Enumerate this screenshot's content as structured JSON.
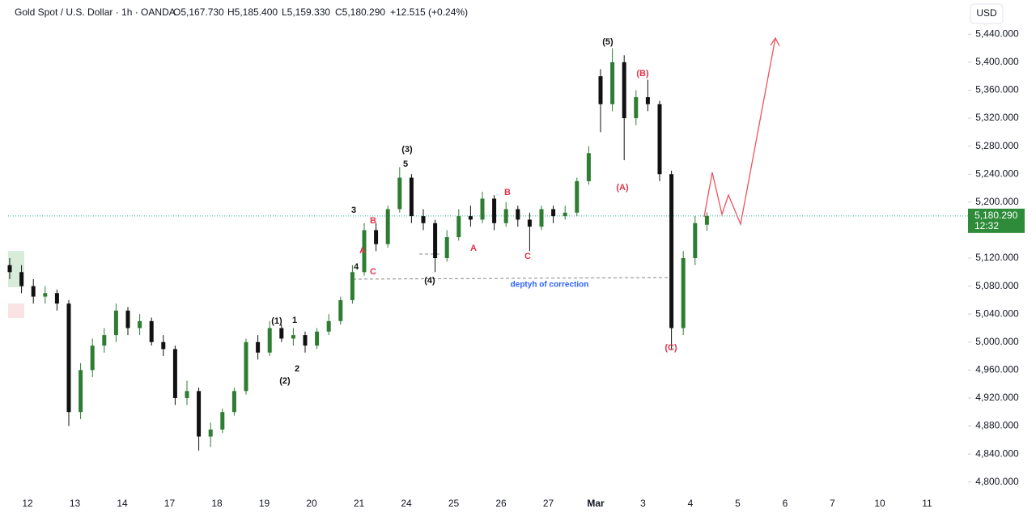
{
  "chart_data": {
    "type": "candlestick",
    "title": "Gold Spot / U.S. Dollar · 1h · OANDA",
    "ohlc_header": {
      "open": "O5,167.730",
      "high": "H5,185.400",
      "low": "L5,159.330",
      "close": "C5,180.290",
      "change": "+12.515 (+0.24%)"
    },
    "currency": "USD",
    "up_color": "#2e7d32",
    "down_color": "#111111",
    "open": [
      5110,
      5100,
      5080,
      5065,
      5070,
      5055,
      4900,
      4960,
      4995,
      5010,
      5045,
      5020,
      5030,
      5000,
      4990,
      4920,
      4930,
      4865,
      4875,
      4900,
      4930,
      5000,
      4985,
      5020,
      5005,
      5010,
      4995,
      5015,
      5030,
      5060,
      5100,
      5160,
      5140,
      5190,
      5235,
      5180,
      5170,
      5120,
      5150,
      5180,
      5175,
      5205,
      5170,
      5190,
      5175,
      5165,
      5190,
      5180,
      5185,
      5230,
      5380,
      5340,
      5400,
      5320,
      5350,
      5340,
      5240,
      5020,
      5120,
      5167.73
    ],
    "high": [
      5120,
      5110,
      5090,
      5080,
      5075,
      5060,
      4970,
      5005,
      5020,
      5055,
      5050,
      5040,
      5035,
      5010,
      4995,
      4945,
      4935,
      4885,
      4905,
      4935,
      5005,
      5010,
      5030,
      5025,
      5020,
      5015,
      5020,
      5040,
      5065,
      5110,
      5170,
      5170,
      5195,
      5250,
      5240,
      5190,
      5175,
      5160,
      5190,
      5195,
      5215,
      5210,
      5200,
      5195,
      5185,
      5195,
      5195,
      5195,
      5235,
      5280,
      5390,
      5420,
      5410,
      5360,
      5375,
      5345,
      5245,
      5130,
      5180,
      5185.4
    ],
    "low": [
      5090,
      5070,
      5055,
      5055,
      5045,
      4880,
      4890,
      4950,
      4985,
      5000,
      5010,
      5010,
      4995,
      4980,
      4910,
      4910,
      4845,
      4850,
      4870,
      4895,
      4925,
      4975,
      4980,
      5000,
      4995,
      4985,
      4990,
      5010,
      5025,
      5055,
      5095,
      5130,
      5135,
      5185,
      5170,
      5160,
      5100,
      5115,
      5145,
      5165,
      5170,
      5160,
      5165,
      5165,
      5130,
      5160,
      5170,
      5175,
      5180,
      5225,
      5300,
      5330,
      5260,
      5310,
      5330,
      5230,
      4990,
      5010,
      5110,
      5159.33
    ],
    "close": [
      5100,
      5080,
      5065,
      5070,
      5055,
      4900,
      4960,
      4995,
      5010,
      5045,
      5020,
      5030,
      5000,
      4990,
      4920,
      4930,
      4865,
      4875,
      4900,
      4930,
      5000,
      4985,
      5020,
      5005,
      5010,
      4995,
      5015,
      5030,
      5060,
      5100,
      5160,
      5140,
      5190,
      5235,
      5180,
      5170,
      5120,
      5150,
      5180,
      5175,
      5205,
      5170,
      5190,
      5175,
      5165,
      5190,
      5180,
      5185,
      5230,
      5270,
      5340,
      5400,
      5320,
      5350,
      5340,
      5240,
      5020,
      5120,
      5170,
      5180.29
    ],
    "categories": [
      "12",
      "13",
      "14",
      "17",
      "18",
      "19",
      "20",
      "21",
      "24",
      "25",
      "26",
      "27",
      "Mar",
      "3",
      "4",
      "5",
      "6",
      "7",
      "10",
      "11"
    ],
    "ylim": [
      4780,
      5460
    ],
    "yticks": [
      {
        "value": 4800,
        "label": "4,800.000"
      },
      {
        "value": 4840,
        "label": "4,840.000"
      },
      {
        "value": 4880,
        "label": "4,880.000"
      },
      {
        "value": 4920,
        "label": "4,920.000"
      },
      {
        "value": 4960,
        "label": "4,960.000"
      },
      {
        "value": 5000,
        "label": "5,000.000"
      },
      {
        "value": 5040,
        "label": "5,040.000"
      },
      {
        "value": 5080,
        "label": "5,080.000"
      },
      {
        "value": 5120,
        "label": "5,120.000"
      },
      {
        "value": 5200,
        "label": "5,200.000"
      },
      {
        "value": 5240,
        "label": "5,240.000"
      },
      {
        "value": 5280,
        "label": "5,280.000"
      },
      {
        "value": 5320,
        "label": "5,320.000"
      },
      {
        "value": 5360,
        "label": "5,360.000"
      },
      {
        "value": 5400,
        "label": "5,400.000"
      },
      {
        "value": 5440,
        "label": "5,440.000"
      }
    ],
    "last_price": {
      "value": 5180.29,
      "label": "5,180.290"
    },
    "countdown": "12:32",
    "annotations": [
      {
        "text": "(5)",
        "color": "#111111"
      },
      {
        "text": "(B)",
        "color": "#e0344a"
      },
      {
        "text": "(A)",
        "color": "#e0344a"
      },
      {
        "text": "(C)",
        "color": "#e0344a"
      },
      {
        "text": "(3)",
        "color": "#111111"
      },
      {
        "text": "5",
        "color": "#111111"
      },
      {
        "text": "3",
        "color": "#111111"
      },
      {
        "text": "B",
        "color": "#e0344a"
      },
      {
        "text": "A",
        "color": "#e0344a"
      },
      {
        "text": "4",
        "color": "#111111"
      },
      {
        "text": "C",
        "color": "#e0344a"
      },
      {
        "text": "(4)",
        "color": "#111111"
      },
      {
        "text": "B",
        "color": "#e0344a"
      },
      {
        "text": "A",
        "color": "#e0344a"
      },
      {
        "text": "C",
        "color": "#e0344a"
      },
      {
        "text": "(1)",
        "color": "#111111"
      },
      {
        "text": "1",
        "color": "#111111"
      },
      {
        "text": "2",
        "color": "#111111"
      },
      {
        "text": "(2)",
        "color": "#111111"
      },
      {
        "text": "deptyh of correction",
        "color": "#2962ff"
      }
    ]
  }
}
